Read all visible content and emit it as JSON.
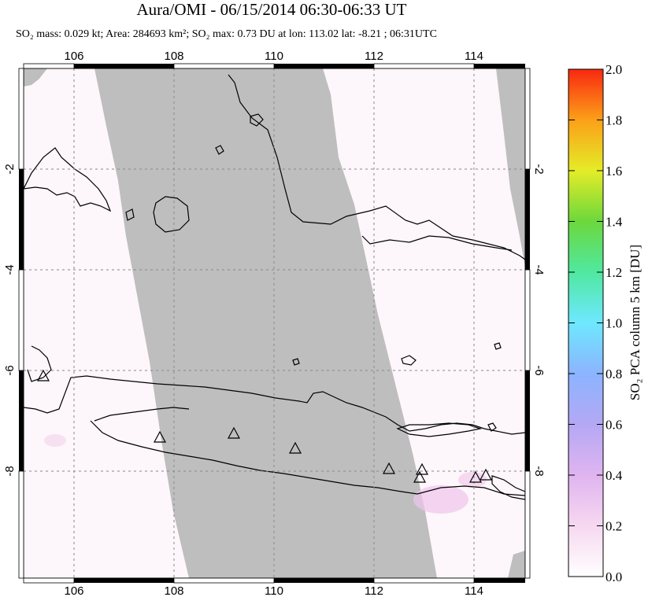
{
  "title": "Aura/OMI - 06/15/2014 06:30-06:33 UT",
  "subtitle": {
    "so2_mass": "SO₂ mass: 0.029 kt; Area: 284693 km²; SO₂ max: 0.73 DU at lon: 113.02 lat: -8.21 ; 06:31UTC"
  },
  "map": {
    "lon_range": [
      105.0,
      115.0
    ],
    "lat_range": [
      -10.0,
      -1.0
    ],
    "lon_ticks": [
      "106",
      "108",
      "110",
      "112",
      "114"
    ],
    "lat_ticks": [
      "-2",
      "-4",
      "-6",
      "-8"
    ],
    "volcano_count": 10
  },
  "colorbar": {
    "label": "SO₂ PCA column 5 km [DU]",
    "ticks": [
      "2.0",
      "1.8",
      "1.6",
      "1.4",
      "1.2",
      "1.0",
      "0.8",
      "0.6",
      "0.4",
      "0.2",
      "0.0"
    ],
    "range": [
      0.0,
      2.0
    ]
  },
  "colors": {
    "no_data": "#bebebe",
    "background_low": "#fdf6fa",
    "coast": "#000000"
  }
}
